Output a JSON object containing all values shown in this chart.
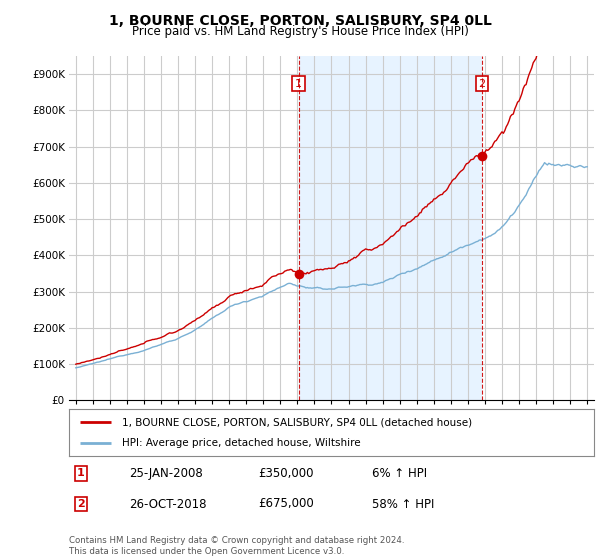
{
  "title": "1, BOURNE CLOSE, PORTON, SALISBURY, SP4 0LL",
  "subtitle": "Price paid vs. HM Land Registry's House Price Index (HPI)",
  "title_fontsize": 10,
  "subtitle_fontsize": 8.5,
  "ylim": [
    0,
    950000
  ],
  "xlim": [
    1994.6,
    2025.4
  ],
  "yticks": [
    0,
    100000,
    200000,
    300000,
    400000,
    500000,
    600000,
    700000,
    800000,
    900000
  ],
  "ytick_labels": [
    "£0",
    "£100K",
    "£200K",
    "£300K",
    "£400K",
    "£500K",
    "£600K",
    "£700K",
    "£800K",
    "£900K"
  ],
  "xticks": [
    1995,
    1996,
    1997,
    1998,
    1999,
    2000,
    2001,
    2002,
    2003,
    2004,
    2005,
    2006,
    2007,
    2008,
    2009,
    2010,
    2011,
    2012,
    2013,
    2014,
    2015,
    2016,
    2017,
    2018,
    2019,
    2020,
    2021,
    2022,
    2023,
    2024,
    2025
  ],
  "property_color": "#cc0000",
  "hpi_color": "#7ab0d4",
  "shade_color": "#ddeeff",
  "background_color": "#ffffff",
  "grid_color": "#cccccc",
  "sale1_year": 2008.07,
  "sale1_price": 350000,
  "sale2_year": 2018.82,
  "sale2_price": 675000,
  "legend_label1": "1, BOURNE CLOSE, PORTON, SALISBURY, SP4 0LL (detached house)",
  "legend_label2": "HPI: Average price, detached house, Wiltshire",
  "table_row1": [
    "1",
    "25-JAN-2008",
    "£350,000",
    "6% ↑ HPI"
  ],
  "table_row2": [
    "2",
    "26-OCT-2018",
    "£675,000",
    "58% ↑ HPI"
  ],
  "footnote": "Contains HM Land Registry data © Crown copyright and database right 2024.\nThis data is licensed under the Open Government Licence v3.0."
}
